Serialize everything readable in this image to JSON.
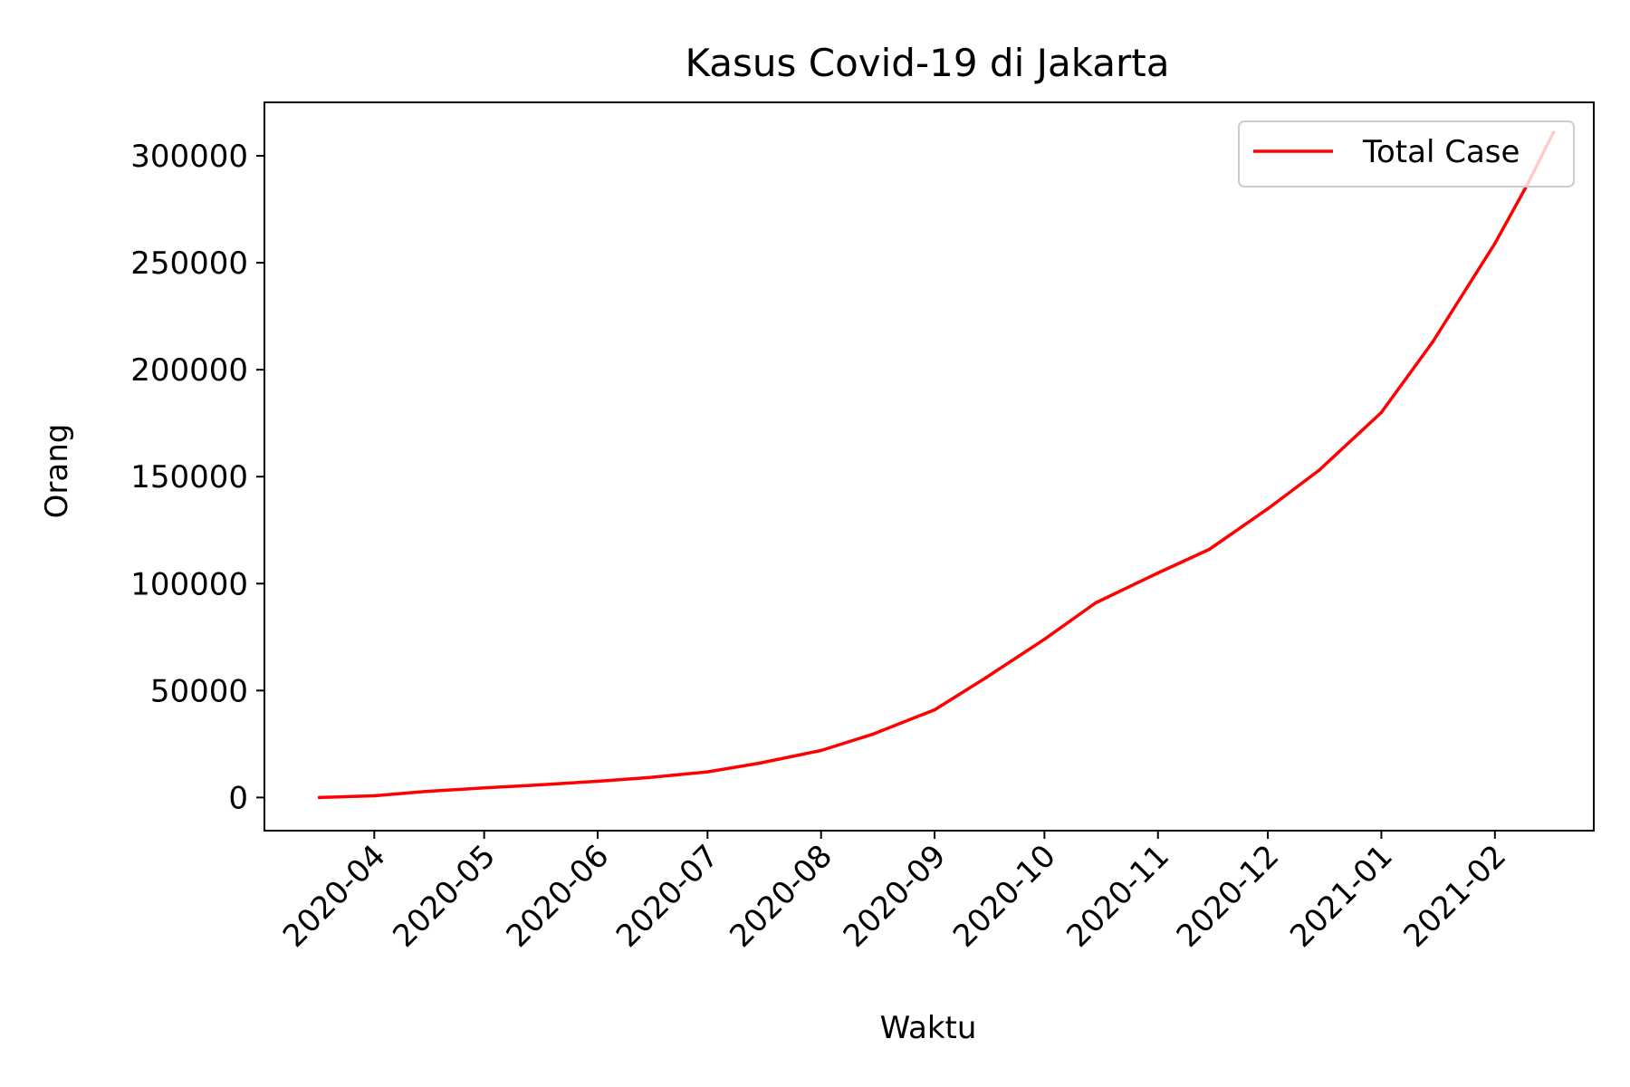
{
  "chart_data": {
    "type": "line",
    "title": "Kasus Covid-19 di Jakarta",
    "xlabel": "Waktu",
    "ylabel": "Orang",
    "x_ticks": [
      "2020-04",
      "2020-05",
      "2020-06",
      "2020-07",
      "2020-08",
      "2020-09",
      "2020-10",
      "2020-11",
      "2020-12",
      "2021-01",
      "2021-02"
    ],
    "y_ticks": [
      "0",
      "50000",
      "100000",
      "150000",
      "200000",
      "250000",
      "300000"
    ],
    "xlim": [
      "2020-03-02",
      "2021-02-28"
    ],
    "ylim": [
      -15500,
      325000
    ],
    "grid": false,
    "legend_position": "top-right",
    "series": [
      {
        "name": "Total Case",
        "color": "#ff0000",
        "x": [
          "2020-03-17",
          "2020-04-01",
          "2020-04-15",
          "2020-05-01",
          "2020-05-15",
          "2020-06-01",
          "2020-06-15",
          "2020-07-01",
          "2020-07-15",
          "2020-08-01",
          "2020-08-15",
          "2020-09-01",
          "2020-09-15",
          "2020-10-01",
          "2020-10-15",
          "2020-11-01",
          "2020-11-15",
          "2020-12-01",
          "2020-12-15",
          "2021-01-01",
          "2021-01-15",
          "2021-02-01",
          "2021-02-10",
          "2021-02-17"
        ],
        "values": [
          0,
          800,
          2800,
          4500,
          5800,
          7600,
          9300,
          12000,
          16000,
          22000,
          29500,
          41000,
          56000,
          74000,
          91000,
          105000,
          116000,
          135000,
          153000,
          180000,
          213000,
          259000,
          287000,
          311000
        ]
      }
    ]
  }
}
